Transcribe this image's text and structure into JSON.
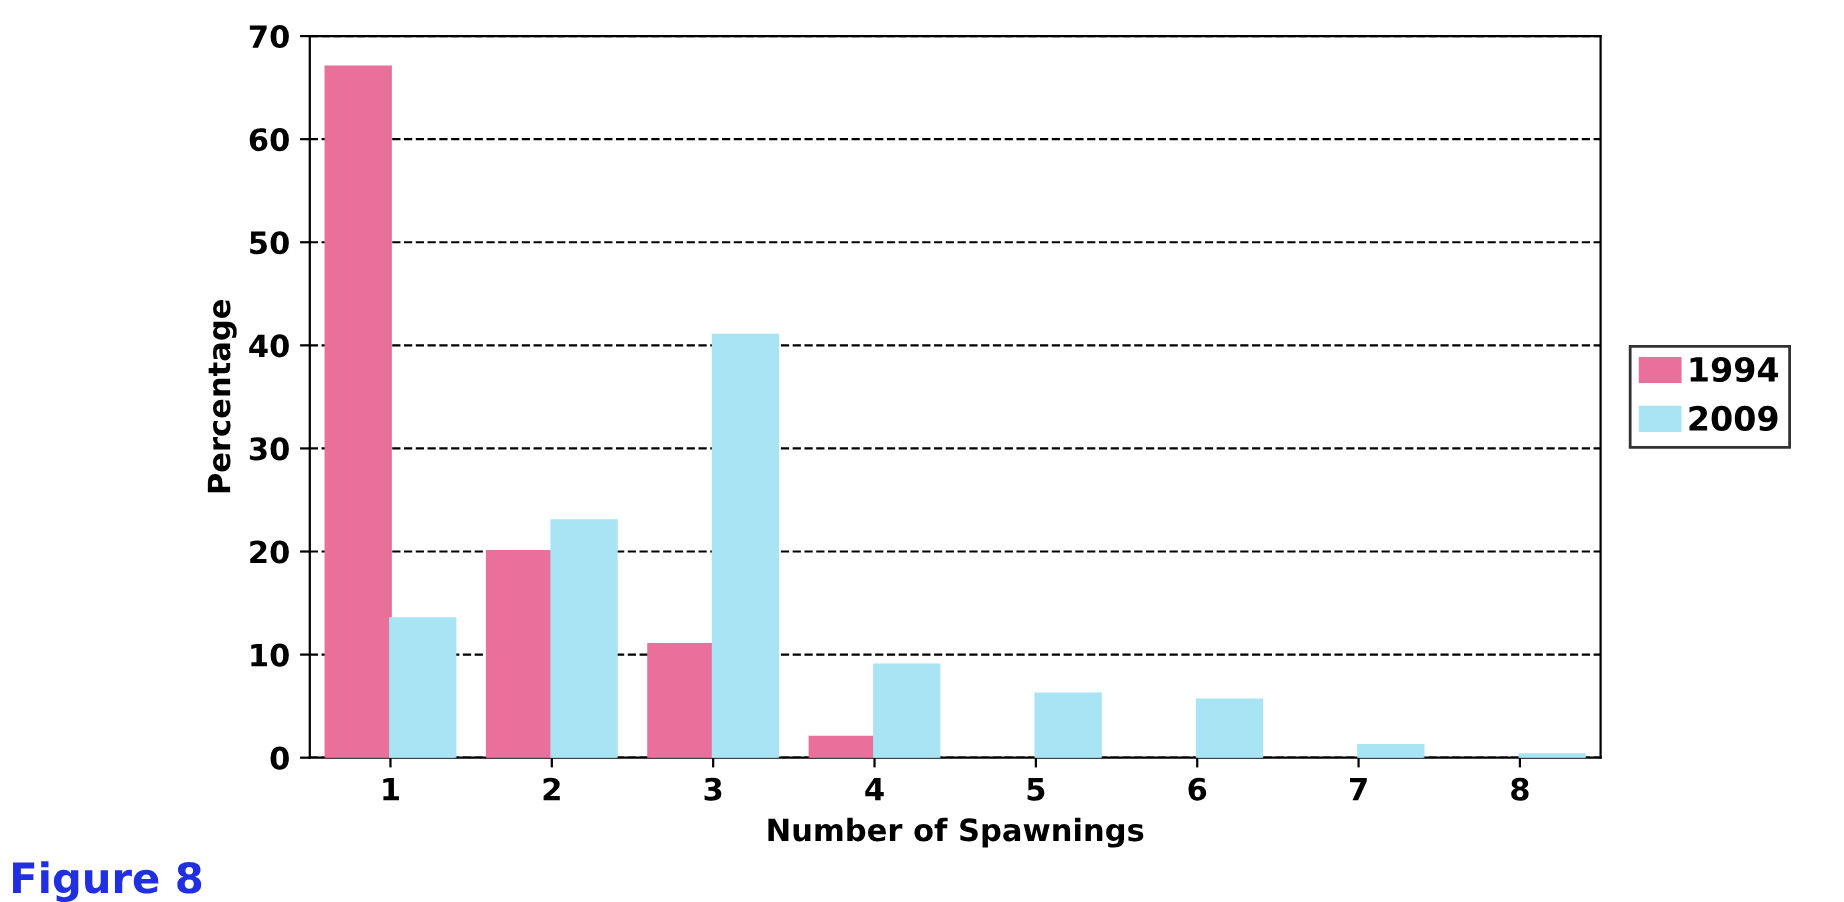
{
  "chart_data": {
    "type": "bar",
    "xlabel": "Number of Spawnings",
    "ylabel": "Percentage",
    "categories": [
      "1",
      "2",
      "3",
      "4",
      "5",
      "6",
      "7",
      "8"
    ],
    "series": [
      {
        "name": "1994",
        "color": "#e8709a",
        "values": [
          67,
          20,
          11,
          2,
          null,
          null,
          null,
          null
        ]
      },
      {
        "name": "2009",
        "color": "#a8e4f4",
        "values": [
          13.5,
          23,
          41,
          9,
          6.2,
          5.6,
          1.2,
          0.3
        ]
      }
    ],
    "ylim": [
      0,
      70
    ],
    "yticks": [
      0,
      10,
      20,
      30,
      40,
      50,
      60,
      70
    ],
    "grid": "y",
    "legend": "right",
    "annotations": [
      "Figure 8"
    ]
  }
}
